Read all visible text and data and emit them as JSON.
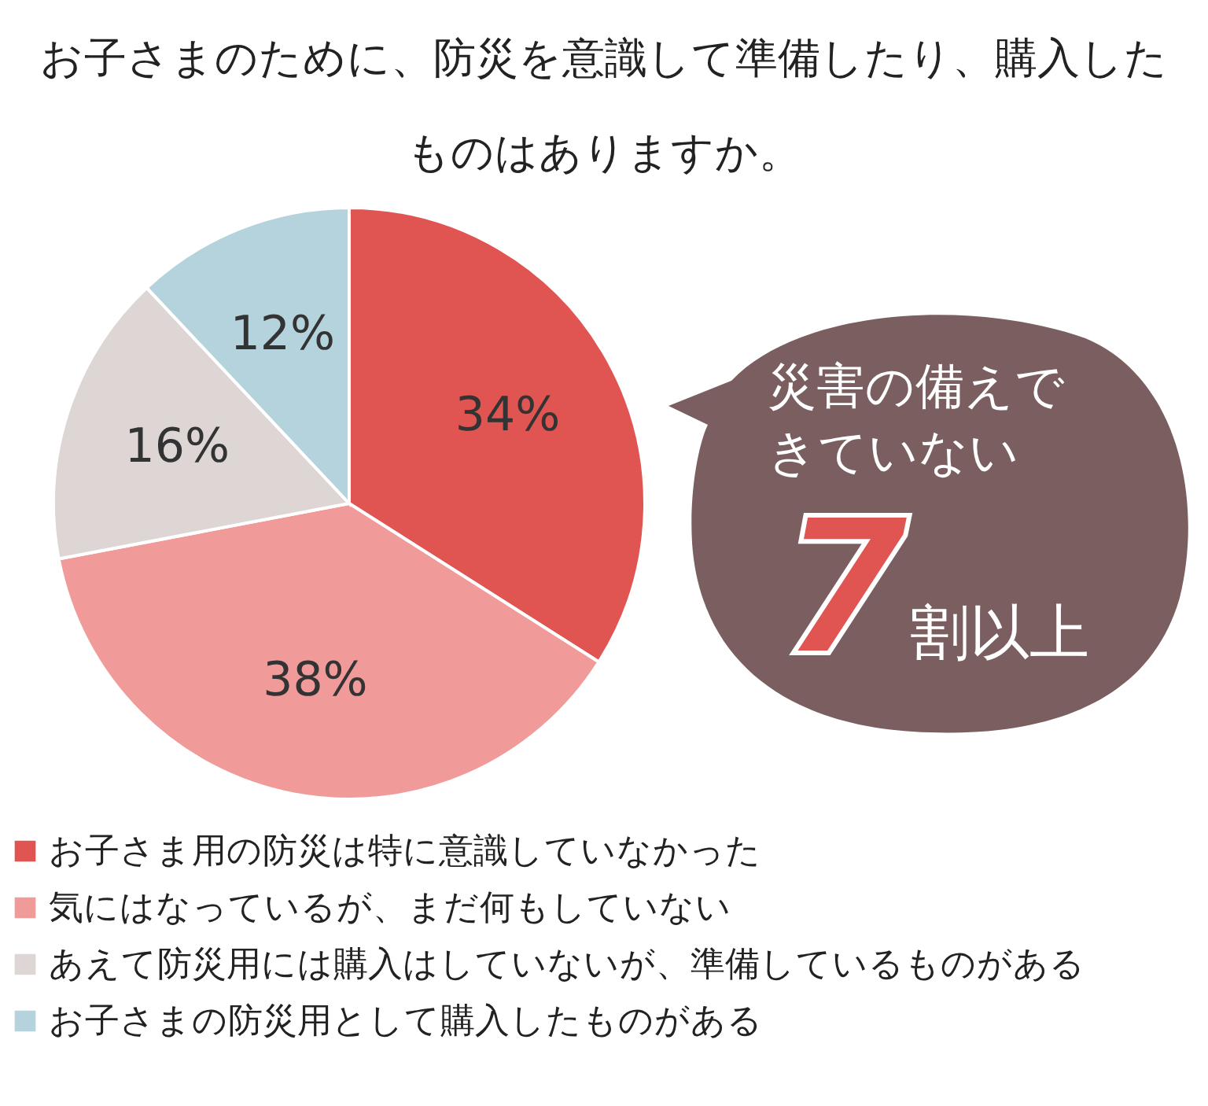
{
  "chart_data": {
    "type": "pie",
    "title": "お子さまのために、防災を意識して準備したり、購入したものはありますか。",
    "categories": [
      "お子さま用の防災は特に意識していなかった",
      "気にはなっているが、まだ何もしていない",
      "あえて防災用には購入はしていないが、準備しているものがある",
      "お子さまの防災用として購入したものがある"
    ],
    "values": [
      34,
      38,
      16,
      12
    ],
    "colors": [
      "#e05552",
      "#f09a9a",
      "#ddd6d4",
      "#b5d3dd"
    ],
    "value_labels": [
      "34%",
      "38%",
      "16%",
      "12%"
    ],
    "legend": "bottom",
    "annotations": [
      "災害の備えできていない",
      "7割以上"
    ]
  }
}
